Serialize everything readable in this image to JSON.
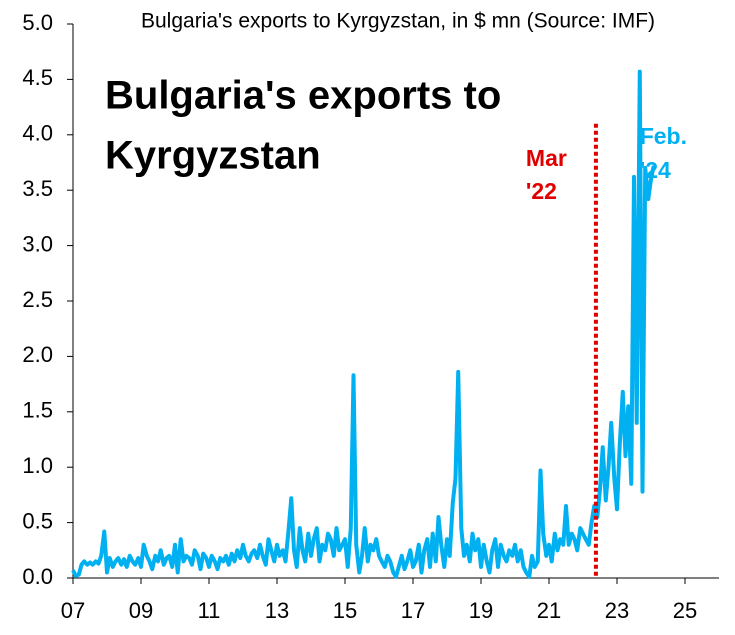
{
  "chart_data": {
    "type": "line",
    "title": "Bulgaria's exports to Kyrgyzstan, in $ mn (Source: IMF)",
    "headline": [
      "Bulgaria's exports to",
      "Kyrgyzstan"
    ],
    "color": "#00b0f0",
    "xlim": [
      2007,
      2026
    ],
    "xticks": [
      {
        "value": 2007,
        "label": "07"
      },
      {
        "value": 2009,
        "label": "09"
      },
      {
        "value": 2011,
        "label": "11"
      },
      {
        "value": 2013,
        "label": "13"
      },
      {
        "value": 2015,
        "label": "15"
      },
      {
        "value": 2017,
        "label": "17"
      },
      {
        "value": 2019,
        "label": "19"
      },
      {
        "value": 2021,
        "label": "21"
      },
      {
        "value": 2023,
        "label": "23"
      },
      {
        "value": 2025,
        "label": "25"
      }
    ],
    "ylim": [
      0,
      5
    ],
    "yticks": [
      {
        "value": 0,
        "label": "0.0"
      },
      0.5,
      {
        "value": 1,
        "label": "1.0"
      },
      1.5,
      {
        "value": 2,
        "label": "2.0"
      },
      2.5,
      {
        "value": 3,
        "label": "3.0"
      },
      3.5,
      {
        "value": 4,
        "label": "4.0"
      },
      4.5,
      {
        "value": 5,
        "label": "5.0"
      }
    ],
    "marker_line": {
      "x": 2022.38,
      "color": "#e00000",
      "label": [
        "Mar",
        "'22"
      ]
    },
    "end_label": [
      "Feb.",
      "'24"
    ],
    "x": [
      2007,
      2007.08,
      2007.17,
      2007.25,
      2007.33,
      2007.42,
      2007.5,
      2007.58,
      2007.67,
      2007.75,
      2007.83,
      2007.92,
      2008,
      2008.08,
      2008.17,
      2008.25,
      2008.33,
      2008.42,
      2008.5,
      2008.58,
      2008.67,
      2008.75,
      2008.83,
      2008.92,
      2009,
      2009.08,
      2009.17,
      2009.25,
      2009.33,
      2009.42,
      2009.5,
      2009.58,
      2009.67,
      2009.75,
      2009.83,
      2009.92,
      2010,
      2010.08,
      2010.17,
      2010.25,
      2010.33,
      2010.42,
      2010.5,
      2010.58,
      2010.67,
      2010.75,
      2010.83,
      2010.92,
      2011,
      2011.08,
      2011.17,
      2011.25,
      2011.33,
      2011.42,
      2011.5,
      2011.58,
      2011.67,
      2011.75,
      2011.83,
      2011.92,
      2012,
      2012.08,
      2012.17,
      2012.25,
      2012.33,
      2012.42,
      2012.5,
      2012.58,
      2012.67,
      2012.75,
      2012.83,
      2012.92,
      2013,
      2013.08,
      2013.17,
      2013.25,
      2013.33,
      2013.42,
      2013.5,
      2013.58,
      2013.67,
      2013.75,
      2013.83,
      2013.92,
      2014,
      2014.08,
      2014.17,
      2014.25,
      2014.33,
      2014.42,
      2014.5,
      2014.58,
      2014.67,
      2014.75,
      2014.83,
      2014.92,
      2015,
      2015.08,
      2015.17,
      2015.25,
      2015.33,
      2015.42,
      2015.5,
      2015.58,
      2015.67,
      2015.75,
      2015.83,
      2015.92,
      2016,
      2016.08,
      2016.17,
      2016.25,
      2016.33,
      2016.42,
      2016.5,
      2016.58,
      2016.67,
      2016.75,
      2016.83,
      2016.92,
      2017,
      2017.08,
      2017.17,
      2017.25,
      2017.33,
      2017.42,
      2017.5,
      2017.58,
      2017.67,
      2017.75,
      2017.83,
      2017.92,
      2018,
      2018.08,
      2018.17,
      2018.25,
      2018.33,
      2018.42,
      2018.5,
      2018.58,
      2018.67,
      2018.75,
      2018.83,
      2018.92,
      2019,
      2019.08,
      2019.17,
      2019.25,
      2019.33,
      2019.42,
      2019.5,
      2019.58,
      2019.67,
      2019.75,
      2019.83,
      2019.92,
      2020,
      2020.08,
      2020.17,
      2020.25,
      2020.33,
      2020.42,
      2020.5,
      2020.58,
      2020.67,
      2020.75,
      2020.83,
      2020.92,
      2021,
      2021.08,
      2021.17,
      2021.25,
      2021.33,
      2021.42,
      2021.5,
      2021.58,
      2021.67,
      2021.75,
      2021.83,
      2021.92,
      2022,
      2022.08,
      2022.17,
      2022.25,
      2022.33,
      2022.42,
      2022.5,
      2022.58,
      2022.67,
      2022.75,
      2022.83,
      2022.92,
      2023,
      2023.08,
      2023.17,
      2023.25,
      2023.33,
      2023.42,
      2023.5,
      2023.58,
      2023.67,
      2023.75,
      2023.83,
      2023.92,
      2024,
      2024.08
    ],
    "values": [
      0.07,
      0.02,
      0.03,
      0.12,
      0.15,
      0.12,
      0.14,
      0.12,
      0.15,
      0.13,
      0.2,
      0.42,
      0.05,
      0.18,
      0.1,
      0.15,
      0.18,
      0.12,
      0.17,
      0.1,
      0.2,
      0.15,
      0.12,
      0.18,
      0.1,
      0.3,
      0.2,
      0.15,
      0.08,
      0.2,
      0.15,
      0.25,
      0.12,
      0.18,
      0.2,
      0.1,
      0.3,
      0.05,
      0.35,
      0.15,
      0.2,
      0.18,
      0.12,
      0.25,
      0.2,
      0.08,
      0.22,
      0.18,
      0.1,
      0.2,
      0.15,
      0.08,
      0.18,
      0.15,
      0.2,
      0.12,
      0.22,
      0.15,
      0.25,
      0.18,
      0.3,
      0.2,
      0.15,
      0.22,
      0.25,
      0.18,
      0.3,
      0.2,
      0.12,
      0.35,
      0.25,
      0.15,
      0.3,
      0.2,
      0.25,
      0.15,
      0.4,
      0.72,
      0.25,
      0.1,
      0.45,
      0.25,
      0.15,
      0.4,
      0.2,
      0.35,
      0.45,
      0.15,
      0.3,
      0.25,
      0.4,
      0.35,
      0.2,
      0.45,
      0.25,
      0.3,
      0.35,
      0.1,
      0.45,
      1.83,
      0.3,
      0.05,
      0.2,
      0.45,
      0.15,
      0.3,
      0.25,
      0.35,
      0.2,
      0.15,
      0.1,
      0.2,
      0.15,
      0.05,
      0.01,
      0.1,
      0.2,
      0.08,
      0.15,
      0.25,
      0.1,
      0.15,
      0.3,
      0.05,
      0.25,
      0.35,
      0.1,
      0.4,
      0.15,
      0.55,
      0.3,
      0.1,
      0.35,
      0.2,
      0.68,
      0.9,
      1.86,
      0.45,
      0.2,
      0.3,
      0.15,
      0.4,
      0.25,
      0.35,
      0.1,
      0.3,
      0.15,
      0.05,
      0.25,
      0.35,
      0.1,
      0.3,
      0.2,
      0.15,
      0.25,
      0.2,
      0.3,
      0.15,
      0.25,
      0.1,
      0.05,
      0.01,
      0.2,
      0.1,
      0.15,
      0.97,
      0.4,
      0.2,
      0.3,
      0.15,
      0.4,
      0.25,
      0.35,
      0.3,
      0.65,
      0.3,
      0.4,
      0.35,
      0.25,
      0.45,
      0.4,
      0.35,
      0.3,
      0.5,
      0.65,
      0.55,
      0.8,
      1.18,
      0.7,
      1.0,
      1.4,
      0.9,
      0.62,
      1.2,
      1.68,
      1.1,
      1.55,
      0.85,
      3.62,
      1.4,
      4.57,
      0.78,
      3.7,
      3.42,
      3.6,
      3.72
    ]
  }
}
